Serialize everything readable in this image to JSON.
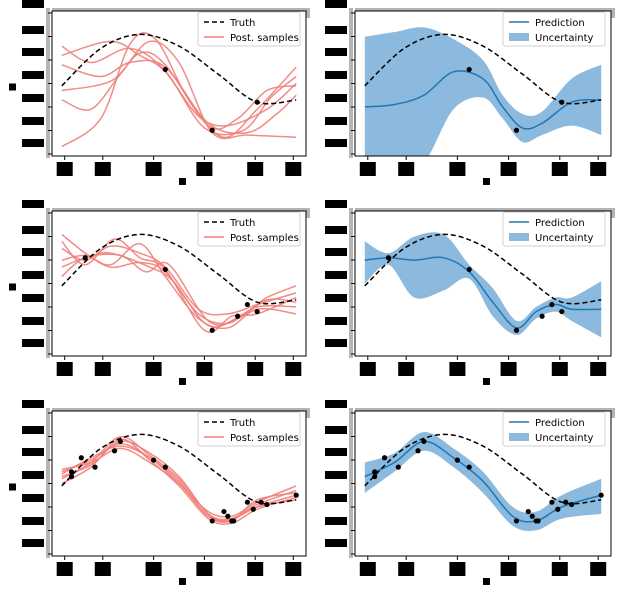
{
  "figure": {
    "colors": {
      "truth": "#000000",
      "samples": "#ef7f7a",
      "prediction": "#1f77b4",
      "uncertainty": "#5b9bd0",
      "points": "#000000",
      "redaction": "#000000",
      "axis_gray": "#b5b5b5"
    }
  },
  "chart_data": [
    {
      "type": "line",
      "title": "",
      "xlabel": "",
      "ylabel": "",
      "legend": {
        "placement": "top-right",
        "entries": [
          "Truth",
          "Post. samples"
        ]
      },
      "truth": {
        "name": "Truth",
        "x": [
          -0.15,
          0.05,
          0.25,
          0.45,
          0.65,
          0.85,
          1.05
        ],
        "y": [
          -0.1,
          0.7,
          1.0,
          0.75,
          0.15,
          -0.45,
          -0.4
        ]
      },
      "points": {
        "x": [
          0.38,
          0.62,
          0.85
        ],
        "y": [
          0.25,
          -1.05,
          -0.45
        ]
      },
      "series": [
        {
          "values": [
            [
              -0.15,
              0.55
            ],
            [
              0.1,
              0.85
            ],
            [
              0.25,
              0.55
            ],
            [
              0.38,
              0.2
            ],
            [
              0.55,
              -0.75
            ],
            [
              0.7,
              -0.95
            ],
            [
              0.9,
              -0.6
            ],
            [
              1.05,
              -0.05
            ]
          ]
        },
        {
          "values": [
            [
              -0.15,
              0.35
            ],
            [
              0.05,
              0.1
            ],
            [
              0.2,
              0.4
            ],
            [
              0.38,
              0.3
            ],
            [
              0.6,
              -0.9
            ],
            [
              0.8,
              -1.1
            ],
            [
              0.95,
              -0.7
            ],
            [
              1.05,
              -0.3
            ]
          ]
        },
        {
          "values": [
            [
              -0.15,
              -0.4
            ],
            [
              0.0,
              -0.6
            ],
            [
              0.15,
              0.15
            ],
            [
              0.3,
              0.85
            ],
            [
              0.45,
              0.4
            ],
            [
              0.62,
              -1.1
            ],
            [
              0.8,
              -1.15
            ],
            [
              1.05,
              -1.2
            ]
          ]
        },
        {
          "values": [
            [
              -0.15,
              -0.2
            ],
            [
              0.1,
              0.0
            ],
            [
              0.25,
              0.6
            ],
            [
              0.38,
              0.35
            ],
            [
              0.6,
              -0.95
            ],
            [
              0.75,
              -0.8
            ],
            [
              0.9,
              -0.2
            ],
            [
              1.05,
              -0.1
            ]
          ]
        },
        {
          "values": [
            [
              -0.15,
              -1.4
            ],
            [
              0.05,
              -0.8
            ],
            [
              0.2,
              0.8
            ],
            [
              0.33,
              0.9
            ],
            [
              0.5,
              -0.4
            ],
            [
              0.68,
              -1.2
            ],
            [
              0.85,
              -0.6
            ],
            [
              1.05,
              0.3
            ]
          ]
        },
        {
          "values": [
            [
              -0.15,
              0.75
            ],
            [
              0.0,
              0.4
            ],
            [
              0.2,
              0.7
            ],
            [
              0.38,
              0.22
            ],
            [
              0.58,
              -1.0
            ],
            [
              0.78,
              -1.05
            ],
            [
              0.92,
              -0.35
            ],
            [
              1.05,
              0.1
            ]
          ]
        }
      ]
    },
    {
      "type": "area",
      "title": "",
      "xlabel": "",
      "ylabel": "",
      "legend": {
        "placement": "top-right",
        "entries": [
          "Prediction",
          "Uncertainty"
        ]
      },
      "truth": {
        "x": [
          -0.15,
          0.05,
          0.25,
          0.45,
          0.65,
          0.85,
          1.05
        ],
        "y": [
          -0.1,
          0.7,
          1.0,
          0.75,
          0.15,
          -0.45,
          -0.4
        ]
      },
      "points": {
        "x": [
          0.38,
          0.62,
          0.85
        ],
        "y": [
          0.25,
          -1.05,
          -0.45
        ]
      },
      "prediction": {
        "name": "Prediction",
        "x": [
          -0.15,
          0.0,
          0.15,
          0.3,
          0.45,
          0.55,
          0.65,
          0.75,
          0.9,
          1.05
        ],
        "y": [
          -0.55,
          -0.5,
          -0.3,
          0.2,
          0.05,
          -0.55,
          -1.0,
          -0.9,
          -0.45,
          -0.4
        ]
      },
      "band": {
        "name": "Uncertainty",
        "upper": [
          0.95,
          1.05,
          1.15,
          0.9,
          0.45,
          -0.3,
          -0.7,
          -0.65,
          0.05,
          0.35
        ],
        "lower": [
          -2.0,
          -2.05,
          -1.75,
          -0.6,
          -0.35,
          -0.8,
          -1.3,
          -1.15,
          -0.95,
          -1.15
        ]
      }
    },
    {
      "type": "line",
      "title": "",
      "xlabel": "",
      "ylabel": "",
      "legend": {
        "placement": "top-right",
        "entries": [
          "Truth",
          "Post. samples"
        ]
      },
      "truth": {
        "x": [
          -0.15,
          0.05,
          0.25,
          0.45,
          0.65,
          0.85,
          1.05
        ],
        "y": [
          -0.1,
          0.7,
          1.0,
          0.75,
          0.15,
          -0.45,
          -0.4
        ]
      },
      "points": {
        "x": [
          -0.03,
          0.38,
          0.62,
          0.75,
          0.8,
          0.85
        ],
        "y": [
          0.5,
          0.25,
          -1.05,
          -0.75,
          -0.5,
          -0.65
        ]
      },
      "series": [
        {
          "values": [
            [
              -0.15,
              1.0
            ],
            [
              -0.03,
              0.6
            ],
            [
              0.1,
              0.3
            ],
            [
              0.25,
              0.4
            ],
            [
              0.38,
              0.2
            ],
            [
              0.55,
              -0.7
            ],
            [
              0.7,
              -0.9
            ],
            [
              0.85,
              -0.55
            ],
            [
              1.05,
              -0.55
            ]
          ]
        },
        {
          "values": [
            [
              -0.15,
              0.7
            ],
            [
              -0.03,
              0.45
            ],
            [
              0.1,
              0.75
            ],
            [
              0.25,
              0.6
            ],
            [
              0.38,
              0.3
            ],
            [
              0.55,
              -0.6
            ],
            [
              0.7,
              -0.7
            ],
            [
              0.85,
              -0.5
            ],
            [
              1.05,
              -0.25
            ]
          ]
        },
        {
          "values": [
            [
              -0.15,
              0.45
            ],
            [
              -0.03,
              0.55
            ],
            [
              0.1,
              0.35
            ],
            [
              0.25,
              0.8
            ],
            [
              0.38,
              0.1
            ],
            [
              0.55,
              -0.8
            ],
            [
              0.7,
              -1.0
            ],
            [
              0.85,
              -0.6
            ],
            [
              1.05,
              -0.7
            ]
          ]
        },
        {
          "values": [
            [
              -0.15,
              0.1
            ],
            [
              -0.03,
              0.5
            ],
            [
              0.15,
              0.55
            ],
            [
              0.28,
              0.2
            ],
            [
              0.4,
              0.35
            ],
            [
              0.6,
              -0.85
            ],
            [
              0.75,
              -0.8
            ],
            [
              0.9,
              -0.4
            ],
            [
              1.05,
              -0.45
            ]
          ]
        },
        {
          "values": [
            [
              -0.15,
              0.85
            ],
            [
              -0.03,
              0.35
            ],
            [
              0.12,
              0.9
            ],
            [
              0.25,
              0.5
            ],
            [
              0.38,
              0.25
            ],
            [
              0.58,
              -1.05
            ],
            [
              0.72,
              -0.75
            ],
            [
              0.85,
              -0.7
            ],
            [
              1.05,
              -0.35
            ]
          ]
        },
        {
          "values": [
            [
              -0.15,
              0.3
            ],
            [
              -0.03,
              0.5
            ],
            [
              0.1,
              0.6
            ],
            [
              0.3,
              0.3
            ],
            [
              0.42,
              0.0
            ],
            [
              0.6,
              -0.95
            ],
            [
              0.78,
              -0.7
            ],
            [
              0.9,
              -0.35
            ],
            [
              1.05,
              -0.1
            ]
          ]
        }
      ]
    },
    {
      "type": "area",
      "title": "",
      "xlabel": "",
      "ylabel": "",
      "legend": {
        "placement": "top-right",
        "entries": [
          "Prediction",
          "Uncertainty"
        ]
      },
      "truth": {
        "x": [
          -0.15,
          0.05,
          0.25,
          0.45,
          0.65,
          0.85,
          1.05
        ],
        "y": [
          -0.1,
          0.7,
          1.0,
          0.75,
          0.15,
          -0.45,
          -0.4
        ]
      },
      "points": {
        "x": [
          -0.03,
          0.38,
          0.62,
          0.75,
          0.8,
          0.85
        ],
        "y": [
          0.5,
          0.25,
          -1.05,
          -0.75,
          -0.5,
          -0.65
        ]
      },
      "prediction": {
        "x": [
          -0.15,
          -0.03,
          0.1,
          0.25,
          0.38,
          0.5,
          0.62,
          0.72,
          0.82,
          0.9,
          1.05
        ],
        "y": [
          0.45,
          0.5,
          0.45,
          0.5,
          0.2,
          -0.45,
          -1.0,
          -0.65,
          -0.5,
          -0.6,
          -0.6
        ]
      },
      "band": {
        "upper": [
          0.85,
          0.6,
          0.95,
          1.0,
          0.35,
          -0.15,
          -0.85,
          -0.55,
          -0.35,
          -0.35,
          0.0
        ],
        "lower": [
          -0.05,
          0.35,
          -0.35,
          -0.2,
          0.05,
          -0.75,
          -1.15,
          -0.8,
          -0.65,
          -0.85,
          -1.2
        ]
      }
    },
    {
      "type": "line",
      "title": "",
      "xlabel": "",
      "ylabel": "",
      "legend": {
        "placement": "top-right",
        "entries": [
          "Truth",
          "Post. samples"
        ]
      },
      "truth": {
        "x": [
          -0.15,
          0.05,
          0.25,
          0.45,
          0.65,
          0.85,
          1.05
        ],
        "y": [
          -0.1,
          0.7,
          1.0,
          0.75,
          0.15,
          -0.45,
          -0.4
        ]
      },
      "points": {
        "x": [
          -0.1,
          -0.1,
          -0.05,
          0.02,
          0.12,
          0.15,
          0.32,
          0.38,
          0.62,
          0.68,
          0.7,
          0.72,
          0.73,
          0.8,
          0.83,
          0.87,
          0.9,
          1.05
        ],
        "y": [
          0.1,
          0.2,
          0.5,
          0.3,
          0.65,
          0.85,
          0.45,
          0.3,
          -0.85,
          -0.65,
          -0.75,
          -0.85,
          -0.85,
          -0.45,
          -0.6,
          -0.45,
          -0.5,
          -0.3
        ]
      },
      "series": [
        {
          "values": [
            [
              -0.15,
              0.05
            ],
            [
              0.0,
              0.4
            ],
            [
              0.15,
              0.95
            ],
            [
              0.3,
              0.55
            ],
            [
              0.45,
              0.05
            ],
            [
              0.6,
              -0.7
            ],
            [
              0.7,
              -0.85
            ],
            [
              0.85,
              -0.55
            ],
            [
              1.05,
              -0.3
            ]
          ]
        },
        {
          "values": [
            [
              -0.15,
              0.2
            ],
            [
              0.0,
              0.45
            ],
            [
              0.15,
              0.8
            ],
            [
              0.3,
              0.5
            ],
            [
              0.45,
              0.0
            ],
            [
              0.6,
              -0.75
            ],
            [
              0.72,
              -0.8
            ],
            [
              0.85,
              -0.5
            ],
            [
              1.05,
              -0.2
            ]
          ]
        },
        {
          "values": [
            [
              -0.15,
              -0.05
            ],
            [
              0.0,
              0.3
            ],
            [
              0.15,
              0.9
            ],
            [
              0.3,
              0.45
            ],
            [
              0.45,
              -0.1
            ],
            [
              0.6,
              -0.8
            ],
            [
              0.72,
              -0.9
            ],
            [
              0.85,
              -0.6
            ],
            [
              1.05,
              -0.35
            ]
          ]
        },
        {
          "values": [
            [
              -0.15,
              0.15
            ],
            [
              0.0,
              0.5
            ],
            [
              0.15,
              0.75
            ],
            [
              0.3,
              0.5
            ],
            [
              0.45,
              -0.05
            ],
            [
              0.6,
              -0.65
            ],
            [
              0.72,
              -0.75
            ],
            [
              0.85,
              -0.45
            ],
            [
              1.05,
              -0.1
            ]
          ]
        },
        {
          "values": [
            [
              -0.15,
              0.1
            ],
            [
              0.0,
              0.35
            ],
            [
              0.15,
              0.85
            ],
            [
              0.3,
              0.6
            ],
            [
              0.45,
              0.1
            ],
            [
              0.6,
              -0.7
            ],
            [
              0.72,
              -0.8
            ],
            [
              0.85,
              -0.55
            ],
            [
              1.05,
              -0.4
            ]
          ]
        },
        {
          "values": [
            [
              -0.15,
              0.25
            ],
            [
              0.0,
              0.4
            ],
            [
              0.15,
              0.7
            ],
            [
              0.3,
              0.4
            ],
            [
              0.45,
              -0.05
            ],
            [
              0.6,
              -0.75
            ],
            [
              0.72,
              -0.85
            ],
            [
              0.85,
              -0.4
            ],
            [
              1.05,
              -0.25
            ]
          ]
        }
      ]
    },
    {
      "type": "area",
      "title": "",
      "xlabel": "",
      "ylabel": "",
      "legend": {
        "placement": "top-right",
        "entries": [
          "Prediction",
          "Uncertainty"
        ]
      },
      "truth": {
        "x": [
          -0.15,
          0.05,
          0.25,
          0.45,
          0.65,
          0.85,
          1.05
        ],
        "y": [
          -0.1,
          0.7,
          1.0,
          0.75,
          0.15,
          -0.45,
          -0.4
        ]
      },
      "points": {
        "x": [
          -0.1,
          -0.1,
          -0.05,
          0.02,
          0.12,
          0.15,
          0.32,
          0.38,
          0.62,
          0.68,
          0.7,
          0.72,
          0.73,
          0.8,
          0.83,
          0.87,
          0.9,
          1.05
        ],
        "y": [
          0.1,
          0.2,
          0.5,
          0.3,
          0.65,
          0.85,
          0.45,
          0.3,
          -0.85,
          -0.65,
          -0.75,
          -0.85,
          -0.85,
          -0.45,
          -0.6,
          -0.45,
          -0.5,
          -0.3
        ]
      },
      "prediction": {
        "x": [
          -0.15,
          0.0,
          0.15,
          0.3,
          0.45,
          0.6,
          0.72,
          0.85,
          1.05
        ],
        "y": [
          0.1,
          0.4,
          0.85,
          0.5,
          0.0,
          -0.75,
          -0.85,
          -0.55,
          -0.3
        ]
      },
      "band": {
        "upper": [
          0.4,
          0.6,
          1.05,
          0.7,
          0.2,
          -0.55,
          -0.65,
          -0.3,
          0.05
        ],
        "lower": [
          -0.25,
          0.2,
          0.65,
          0.3,
          -0.25,
          -0.95,
          -1.05,
          -0.8,
          -0.7
        ]
      }
    }
  ]
}
